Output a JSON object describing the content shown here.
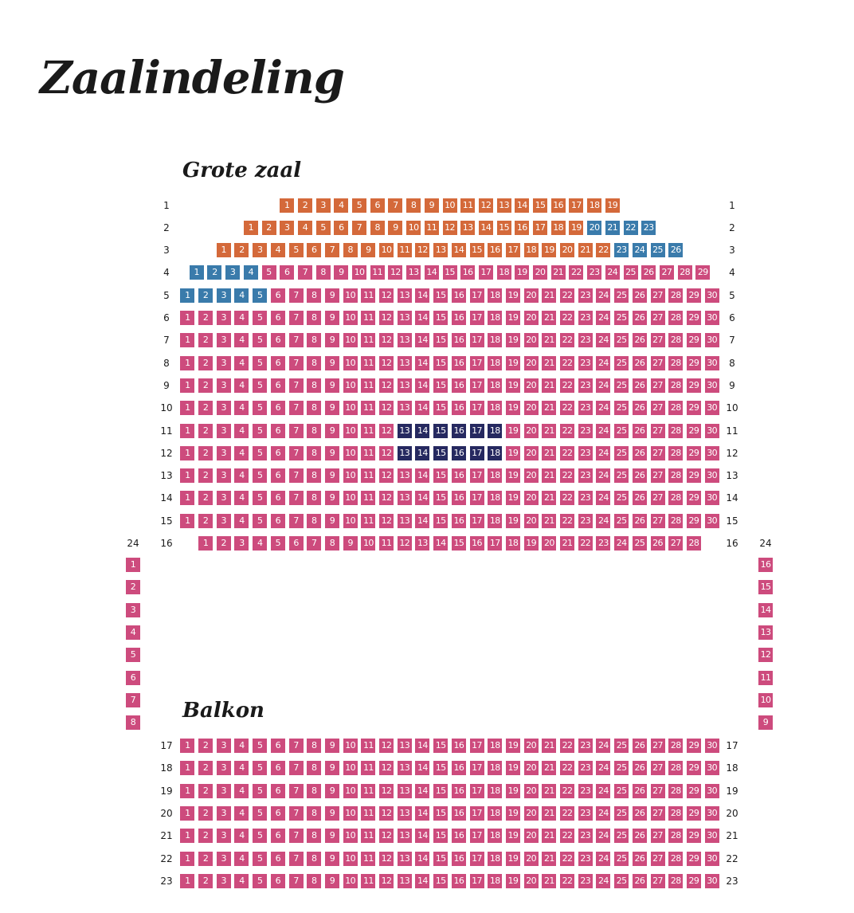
{
  "page": {
    "title": "Zaalindeling"
  },
  "legend_colors": {
    "orange": "#d4693a",
    "blue": "#3a7bab",
    "pink": "#cd4b7d",
    "navy": "#262960"
  },
  "sections": {
    "main": {
      "title": "Grote zaal",
      "rows": [
        {
          "label": "1",
          "first": 1,
          "last": 19,
          "zones": [
            {
              "from": 1,
              "to": 19,
              "color": "orange"
            }
          ]
        },
        {
          "label": "2",
          "first": 1,
          "last": 23,
          "zones": [
            {
              "from": 1,
              "to": 19,
              "color": "orange"
            },
            {
              "from": 20,
              "to": 23,
              "color": "blue"
            }
          ]
        },
        {
          "label": "3",
          "first": 1,
          "last": 26,
          "zones": [
            {
              "from": 1,
              "to": 22,
              "color": "orange"
            },
            {
              "from": 23,
              "to": 26,
              "color": "blue"
            }
          ]
        },
        {
          "label": "4",
          "first": 1,
          "last": 29,
          "zones": [
            {
              "from": 1,
              "to": 4,
              "color": "blue"
            },
            {
              "from": 5,
              "to": 29,
              "color": "pink"
            }
          ]
        },
        {
          "label": "5",
          "first": 1,
          "last": 30,
          "zones": [
            {
              "from": 1,
              "to": 5,
              "color": "blue"
            },
            {
              "from": 6,
              "to": 30,
              "color": "pink"
            }
          ]
        },
        {
          "label": "6",
          "first": 1,
          "last": 30,
          "zones": [
            {
              "from": 1,
              "to": 30,
              "color": "pink"
            }
          ]
        },
        {
          "label": "7",
          "first": 1,
          "last": 30,
          "zones": [
            {
              "from": 1,
              "to": 30,
              "color": "pink"
            }
          ]
        },
        {
          "label": "8",
          "first": 1,
          "last": 30,
          "zones": [
            {
              "from": 1,
              "to": 30,
              "color": "pink"
            }
          ]
        },
        {
          "label": "9",
          "first": 1,
          "last": 30,
          "zones": [
            {
              "from": 1,
              "to": 30,
              "color": "pink"
            }
          ]
        },
        {
          "label": "10",
          "first": 1,
          "last": 30,
          "zones": [
            {
              "from": 1,
              "to": 30,
              "color": "pink"
            }
          ]
        },
        {
          "label": "11",
          "first": 1,
          "last": 30,
          "zones": [
            {
              "from": 1,
              "to": 12,
              "color": "pink"
            },
            {
              "from": 13,
              "to": 18,
              "color": "navy"
            },
            {
              "from": 19,
              "to": 30,
              "color": "pink"
            }
          ]
        },
        {
          "label": "12",
          "first": 1,
          "last": 30,
          "zones": [
            {
              "from": 1,
              "to": 12,
              "color": "pink"
            },
            {
              "from": 13,
              "to": 18,
              "color": "navy"
            },
            {
              "from": 19,
              "to": 30,
              "color": "pink"
            }
          ]
        },
        {
          "label": "13",
          "first": 1,
          "last": 30,
          "zones": [
            {
              "from": 1,
              "to": 30,
              "color": "pink"
            }
          ]
        },
        {
          "label": "14",
          "first": 1,
          "last": 30,
          "zones": [
            {
              "from": 1,
              "to": 30,
              "color": "pink"
            }
          ]
        },
        {
          "label": "15",
          "first": 1,
          "last": 30,
          "zones": [
            {
              "from": 1,
              "to": 30,
              "color": "pink"
            }
          ]
        },
        {
          "label": "16",
          "first": 1,
          "last": 28,
          "zones": [
            {
              "from": 1,
              "to": 28,
              "color": "pink"
            }
          ]
        }
      ]
    },
    "side_left": {
      "label": "24",
      "seats": [
        1,
        2,
        3,
        4,
        5,
        6,
        7,
        8
      ],
      "color": "pink"
    },
    "side_right": {
      "label": "24",
      "seats": [
        16,
        15,
        14,
        13,
        12,
        11,
        10,
        9
      ],
      "color": "pink"
    },
    "balcony": {
      "title": "Balkon",
      "rows": [
        {
          "label": "17",
          "first": 1,
          "last": 30,
          "zones": [
            {
              "from": 1,
              "to": 30,
              "color": "pink"
            }
          ]
        },
        {
          "label": "18",
          "first": 1,
          "last": 30,
          "zones": [
            {
              "from": 1,
              "to": 30,
              "color": "pink"
            }
          ]
        },
        {
          "label": "19",
          "first": 1,
          "last": 30,
          "zones": [
            {
              "from": 1,
              "to": 30,
              "color": "pink"
            }
          ]
        },
        {
          "label": "20",
          "first": 1,
          "last": 30,
          "zones": [
            {
              "from": 1,
              "to": 30,
              "color": "pink"
            }
          ]
        },
        {
          "label": "21",
          "first": 1,
          "last": 30,
          "zones": [
            {
              "from": 1,
              "to": 30,
              "color": "pink"
            }
          ]
        },
        {
          "label": "22",
          "first": 1,
          "last": 30,
          "zones": [
            {
              "from": 1,
              "to": 30,
              "color": "pink"
            }
          ]
        },
        {
          "label": "23",
          "first": 1,
          "last": 30,
          "zones": [
            {
              "from": 1,
              "to": 30,
              "color": "pink"
            }
          ]
        }
      ]
    }
  }
}
